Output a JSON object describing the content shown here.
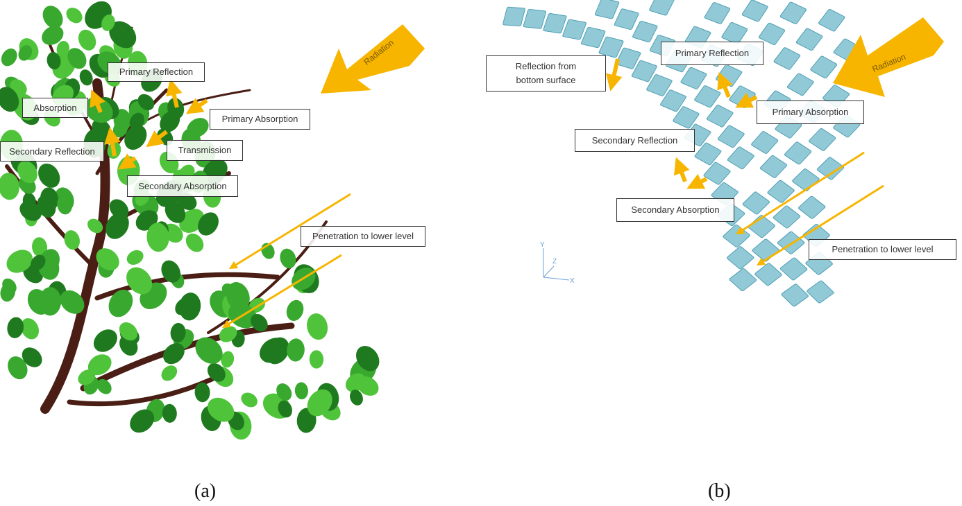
{
  "colors": {
    "arrow": "#f7b500",
    "leaf_light": "#4fc43a",
    "leaf_dark": "#1f7a1f",
    "branch": "#4a1e14",
    "tile": "#7fbfcf",
    "tile_edge": "#4f9fb3"
  },
  "panel_a": {
    "caption": "(a)",
    "radiation": "Radiation",
    "labels": {
      "primary_reflection": "Primary Reflection",
      "absorption": "Absorption",
      "primary_absorption": "Primary Absorption",
      "secondary_reflection": "Secondary Reflection",
      "transmission": "Transmission",
      "secondary_absorption": "Secondary Absorption",
      "penetration": "Penetration to lower level"
    }
  },
  "panel_b": {
    "caption": "(b)",
    "radiation": "Radiation",
    "labels": {
      "reflection_bottom": "Reflection from bottom surface",
      "primary_reflection": "Primary Reflection",
      "primary_absorption": "Primary Absorption",
      "secondary_reflection": "Secondary Reflection",
      "secondary_absorption": "Secondary Absorption",
      "penetration": "Penetration to lower level"
    },
    "axes": {
      "x": "X",
      "y": "Y",
      "z": "Z"
    }
  }
}
